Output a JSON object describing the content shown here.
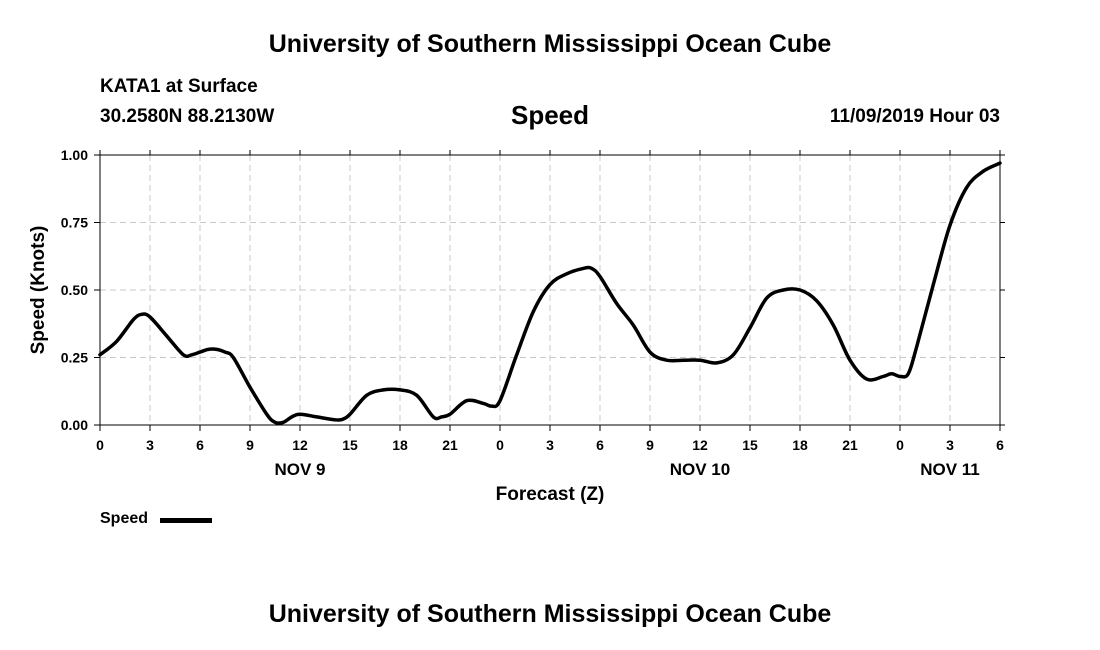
{
  "header": {
    "title": "University of Southern Mississippi Ocean Cube",
    "station": "KATA1 at Surface",
    "location": "30.2580N 88.2130W",
    "variable": "Speed",
    "timestamp": "11/09/2019 Hour 03"
  },
  "footer": {
    "title": "University of Southern Mississippi Ocean Cube"
  },
  "legend": {
    "label": "Speed",
    "color": "#000000"
  },
  "chart_data": {
    "type": "line",
    "title": "Speed",
    "xlabel": "Forecast (Z)",
    "ylabel": "Speed (Knots)",
    "xlim": [
      0,
      54
    ],
    "ylim": [
      0,
      1
    ],
    "grid": true,
    "legend_placement": "bottom-left",
    "x_ticks": [
      0,
      3,
      6,
      9,
      12,
      15,
      18,
      21,
      24,
      27,
      30,
      33,
      36,
      39,
      42,
      45,
      48,
      51,
      54
    ],
    "x_tick_labels": [
      "0",
      "3",
      "6",
      "9",
      "12",
      "15",
      "18",
      "21",
      "0",
      "3",
      "6",
      "9",
      "12",
      "15",
      "18",
      "21",
      "0",
      "3",
      "6"
    ],
    "y_ticks": [
      0,
      0.25,
      0.5,
      0.75,
      1.0
    ],
    "y_tick_labels": [
      "0.00",
      "0.25",
      "0.50",
      "0.75",
      "1.00"
    ],
    "date_labels": [
      {
        "x": 12,
        "label": "NOV 9"
      },
      {
        "x": 36,
        "label": "NOV 10"
      },
      {
        "x": 51,
        "label": "NOV 11"
      }
    ],
    "series": [
      {
        "name": "Speed",
        "x": [
          0,
          1,
          2,
          2.5,
          3,
          4,
          5,
          5.5,
          6,
          6.5,
          7,
          7.5,
          8,
          9,
          10,
          10.5,
          11,
          11.5,
          12,
          13,
          14,
          14.5,
          15,
          16,
          17,
          18,
          19,
          20,
          20.5,
          21,
          22,
          23,
          23.5,
          24,
          25,
          26,
          27,
          28,
          29,
          29.5,
          30,
          31,
          32,
          33,
          34,
          35,
          36,
          37,
          38,
          39,
          40,
          41,
          42,
          43,
          44,
          45,
          46,
          47,
          47.5,
          48,
          48.5,
          49,
          50,
          51,
          52,
          53,
          54
        ],
        "values": [
          0.26,
          0.31,
          0.39,
          0.41,
          0.4,
          0.33,
          0.26,
          0.26,
          0.27,
          0.28,
          0.28,
          0.27,
          0.25,
          0.14,
          0.04,
          0.01,
          0.01,
          0.03,
          0.04,
          0.03,
          0.02,
          0.02,
          0.04,
          0.11,
          0.13,
          0.13,
          0.11,
          0.03,
          0.03,
          0.04,
          0.09,
          0.08,
          0.07,
          0.09,
          0.26,
          0.42,
          0.52,
          0.56,
          0.58,
          0.58,
          0.55,
          0.45,
          0.37,
          0.27,
          0.24,
          0.24,
          0.24,
          0.23,
          0.26,
          0.36,
          0.47,
          0.5,
          0.5,
          0.46,
          0.37,
          0.24,
          0.17,
          0.18,
          0.19,
          0.18,
          0.19,
          0.29,
          0.52,
          0.74,
          0.88,
          0.94,
          0.97
        ]
      }
    ]
  }
}
